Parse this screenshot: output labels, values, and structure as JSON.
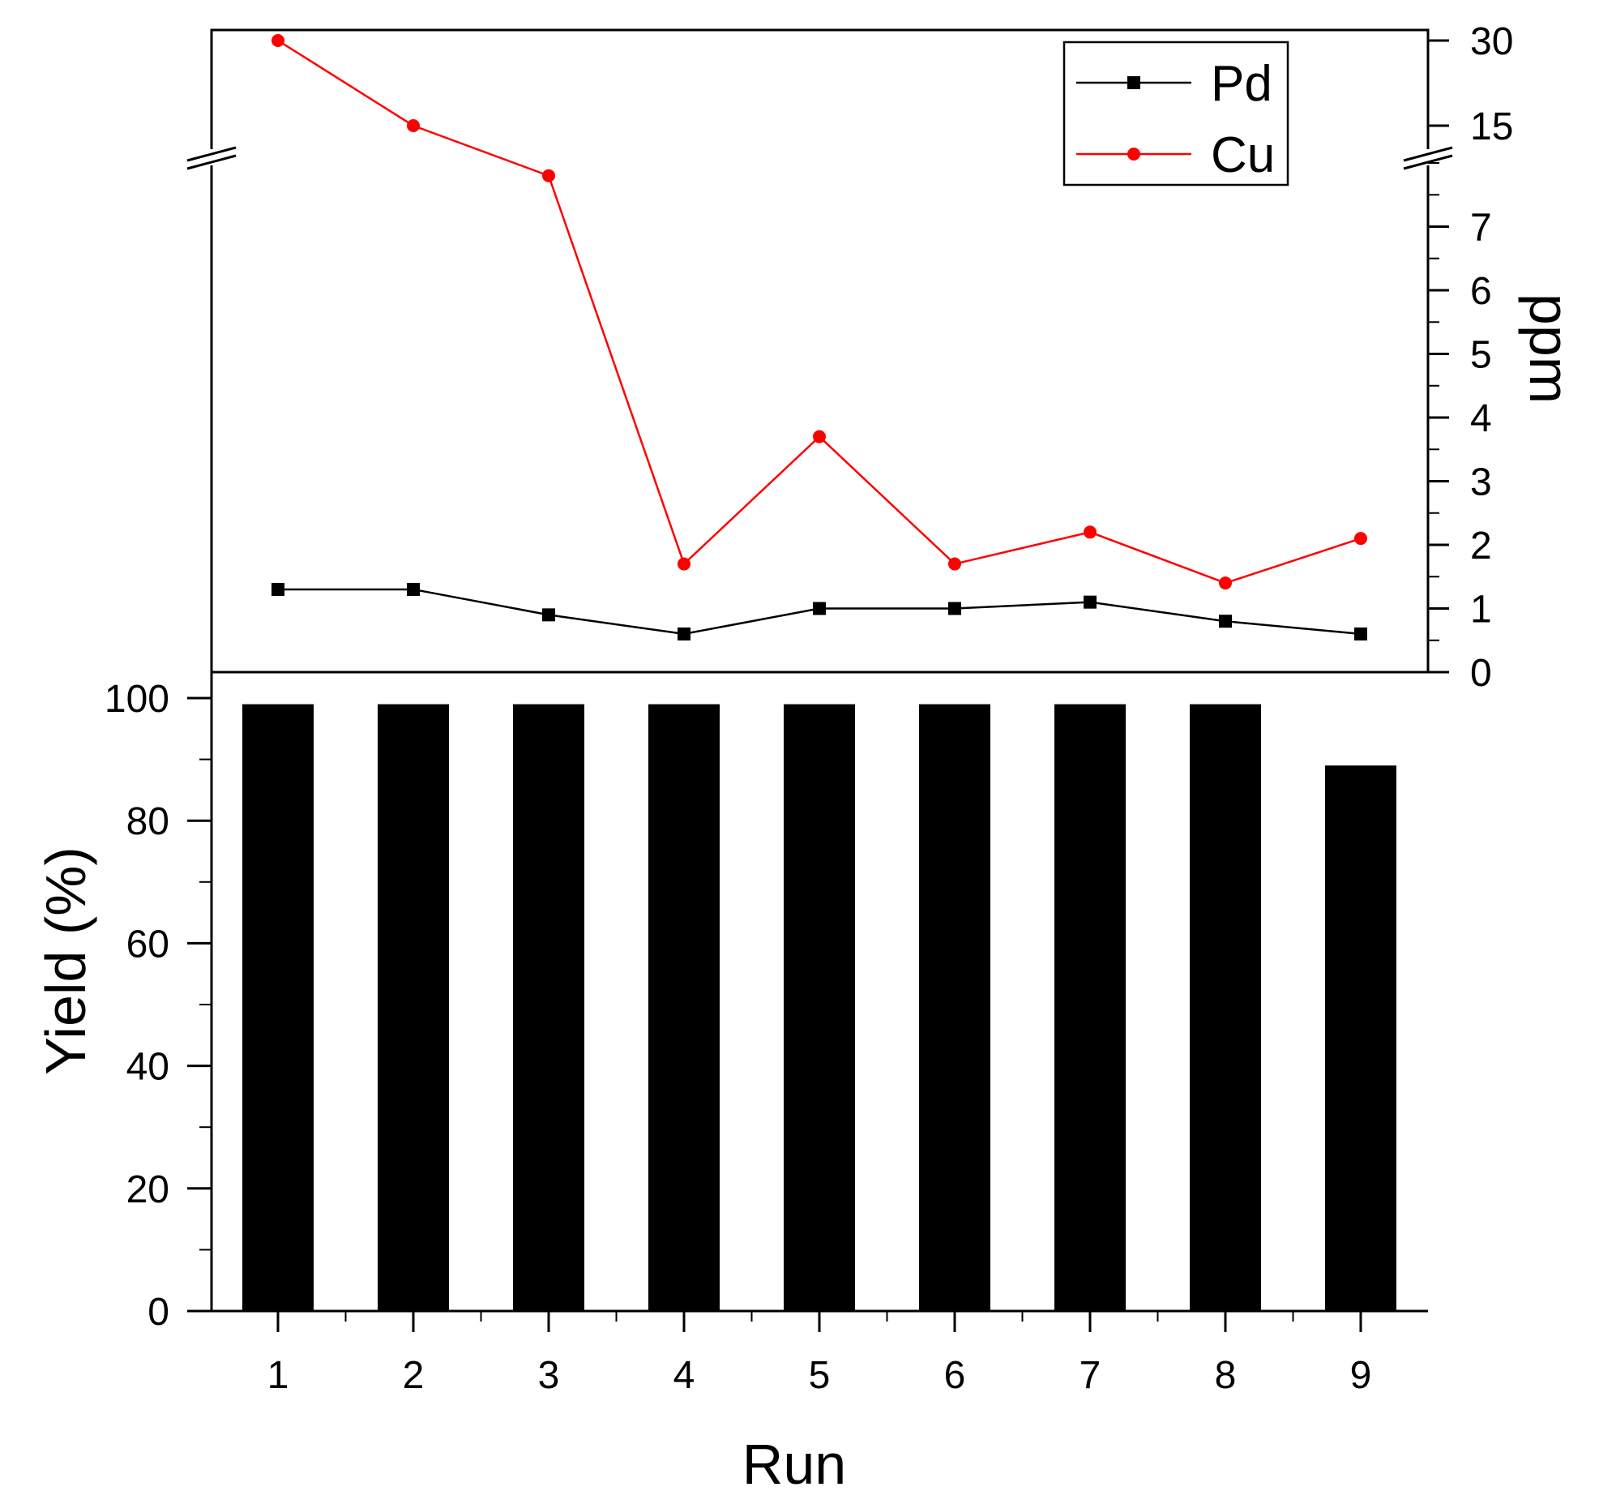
{
  "chart_data": {
    "type": "bar+line",
    "x": [
      1,
      2,
      3,
      4,
      5,
      6,
      7,
      8,
      9
    ],
    "xlabel": "Run",
    "x_ticks": [
      "1",
      "2",
      "3",
      "4",
      "5",
      "6",
      "7",
      "8",
      "9"
    ],
    "top": {
      "type": "line",
      "ylabel": "ppm",
      "axis_side": "right",
      "y_break": true,
      "lower_ylim": [
        0,
        8
      ],
      "upper_ticks": [
        15,
        30
      ],
      "y_ticks": [
        "0",
        "1",
        "2",
        "3",
        "4",
        "5",
        "6",
        "7",
        "15",
        "30"
      ],
      "legend_position": "top-right",
      "series": [
        {
          "name": "Pd",
          "color": "#000000",
          "marker": "square",
          "values": [
            1.3,
            1.3,
            0.9,
            0.6,
            1.0,
            1.0,
            1.1,
            0.8,
            0.6
          ]
        },
        {
          "name": "Cu",
          "color": "#ff0000",
          "marker": "circle",
          "values": [
            30,
            15,
            7.8,
            1.7,
            3.7,
            1.7,
            2.2,
            1.4,
            2.1
          ]
        }
      ]
    },
    "bottom": {
      "type": "bar",
      "ylabel": "Yield (%)",
      "axis_side": "left",
      "ylim": [
        0,
        100
      ],
      "y_ticks": [
        "0",
        "20",
        "40",
        "60",
        "80",
        "100"
      ],
      "bar_color": "#000000",
      "values": [
        99,
        99,
        99,
        99,
        99,
        99,
        99,
        99,
        89
      ]
    }
  }
}
